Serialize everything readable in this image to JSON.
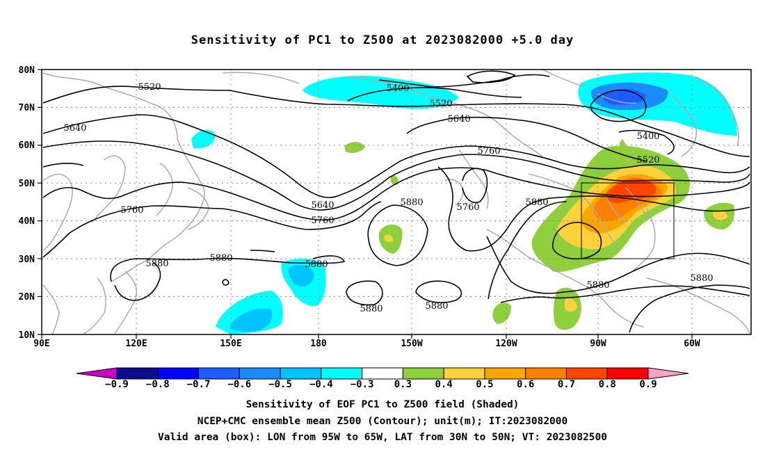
{
  "title": "Sensitivity of PC1 to Z500 at 2023082000 +5.0 day",
  "lat_labels": [
    "80N",
    "70N",
    "60N",
    "50N",
    "40N",
    "30N",
    "20N",
    "10N"
  ],
  "lon_labels": [
    "90E",
    "120E",
    "150E",
    "180",
    "150W",
    "120W",
    "90W",
    "60W"
  ],
  "contour_labels": {
    "c5520a": "5520",
    "c5400a": "5400",
    "c5520b": "5520",
    "c5640a": "5640",
    "c5640b": "5640",
    "c5760a": "5760",
    "c5400b": "5400",
    "c5520c": "5520",
    "c5760b": "5760",
    "c5640c": "5640",
    "c5760c": "5760",
    "c5880a": "5880",
    "c5760d": "5760",
    "c5880b": "5880",
    "c5880c": "5880",
    "c5880d": "5880",
    "c5880e": "5880",
    "c5880f": "5880",
    "c5880g": "5880",
    "c5880h": "5880",
    "c5880i": "5880"
  },
  "colorbar": {
    "labels": [
      "−0.9",
      "−0.8",
      "−0.7",
      "−0.6",
      "−0.5",
      "−0.4",
      "−0.3",
      "0.3",
      "0.4",
      "0.5",
      "0.6",
      "0.7",
      "0.8",
      "0.9"
    ],
    "colors": [
      "#0b0b8c",
      "#0000ff",
      "#1e5cff",
      "#1a8cff",
      "#00c3ff",
      "#00ffff",
      "#ffffff",
      "#8fcf3c",
      "#ffd23c",
      "#ffa500",
      "#ff7f00",
      "#ff4500",
      "#ff0000"
    ],
    "low_tip": "#c800c8",
    "high_tip": "#ffa0c8"
  },
  "captions": {
    "line1": "Sensitivity of EOF PC1 to Z500 field (Shaded)",
    "line2": "NCEP+CMC ensemble mean Z500 (Contour); unit(m); IT:2023082000",
    "line3": "Valid area (box): LON from 95W to 65W, LAT from 30N to 50N; VT: 2023082500"
  }
}
